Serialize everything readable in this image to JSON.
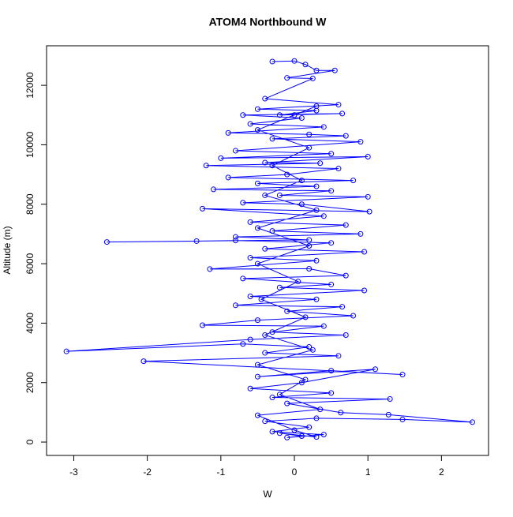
{
  "chart_data": {
    "type": "line",
    "title": "ATOM4 Northbound W",
    "x_label": "W",
    "y_label": "Altitude (m)",
    "color": "#0000ff",
    "markers": true,
    "x": [
      -0.3,
      0.0,
      0.15,
      0.3,
      0.55,
      -0.1,
      0.25,
      -0.4,
      0.6,
      -0.5,
      0.3,
      -0.2,
      0.65,
      -0.7,
      0.1,
      -0.6,
      0.4,
      -0.9,
      0.2,
      0.7,
      -0.3,
      0.9,
      -0.8,
      0.5,
      -1.0,
      1.0,
      -0.4,
      0.35,
      -1.2,
      0.6,
      -0.1,
      -0.9,
      0.8,
      -0.5,
      0.3,
      -1.1,
      0.5,
      -0.2,
      1.0,
      -0.7,
      0.1,
      1.02,
      -1.25,
      0.4,
      -0.6,
      0.7,
      -0.3,
      0.9,
      -0.8,
      0.2,
      -2.55,
      -1.33,
      -0.8,
      0.5,
      -0.4,
      0.95,
      -0.6,
      0.3,
      -1.15,
      0.2,
      0.7,
      -0.7,
      0.5,
      -0.2,
      0.95,
      -0.6,
      0.3,
      -0.8,
      0.65,
      -0.1,
      0.8,
      -0.5,
      -1.25,
      0.4,
      -0.3,
      0.7,
      -0.6,
      -3.1,
      -0.7,
      0.2,
      -0.4,
      0.6,
      -2.05,
      1.47,
      0.5,
      -0.5,
      1.1,
      0.1,
      -0.6,
      0.5,
      -0.3,
      1.3,
      -0.1,
      0.63,
      1.28,
      2.42,
      1.47,
      0.3,
      -0.4,
      0.2,
      -0.3,
      0.4,
      -0.1,
      0.1,
      -0.2,
      0.3,
      0.0,
      -0.5,
      0.35,
      -0.2,
      0.15,
      -0.5,
      0.25,
      -0.4,
      0.15,
      -0.45,
      0.05,
      -0.5,
      0.2,
      -0.5,
      0.3,
      -0.4,
      0.1,
      -0.3,
      0.2,
      -0.5,
      0.0,
      0.3
    ],
    "values": [
      12800,
      12820,
      12700,
      12500,
      12500,
      12250,
      12230,
      11550,
      11350,
      11200,
      11150,
      11000,
      11050,
      11000,
      10900,
      10700,
      10600,
      10400,
      10350,
      10300,
      10200,
      10100,
      9800,
      9700,
      9550,
      9600,
      9400,
      9380,
      9300,
      9200,
      9000,
      8900,
      8800,
      8700,
      8600,
      8500,
      8450,
      8300,
      8250,
      8050,
      8000,
      7750,
      7850,
      7600,
      7400,
      7300,
      7100,
      7000,
      6900,
      6800,
      6730,
      6760,
      6780,
      6700,
      6500,
      6400,
      6200,
      6100,
      5820,
      5830,
      5600,
      5500,
      5300,
      5200,
      5100,
      4900,
      4800,
      4600,
      4550,
      4400,
      4250,
      4100,
      3930,
      3900,
      3700,
      3600,
      3450,
      3050,
      3300,
      3200,
      3000,
      2900,
      2720,
      2270,
      2400,
      2200,
      2450,
      2000,
      1800,
      1650,
      1500,
      1450,
      1300,
      990,
      920,
      670,
      760,
      800,
      700,
      500,
      350,
      250,
      150,
      200,
      300,
      170,
      400,
      900,
      1100,
      1600,
      2100,
      2600,
      3100,
      3600,
      4200,
      4800,
      5400,
      6000,
      6600,
      7200,
      7800,
      8300,
      8800,
      9300,
      9900,
      10500,
      11000,
      11300
    ],
    "xlim": [
      -3.37,
      2.64
    ],
    "ylim": [
      -450,
      13330
    ],
    "xticks": [
      -3,
      -2,
      -1,
      0,
      1,
      2
    ],
    "yticks": [
      0,
      2000,
      4000,
      6000,
      8000,
      10000,
      12000
    ]
  }
}
